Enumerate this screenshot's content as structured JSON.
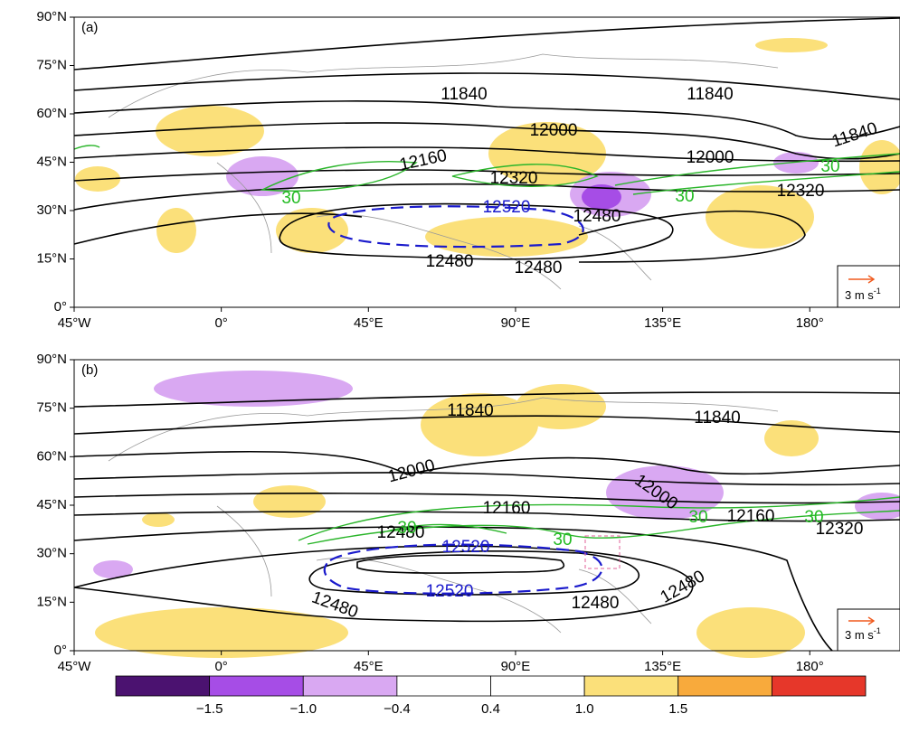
{
  "axes": {
    "lon_lim": [
      -45,
      207.6
    ],
    "lat_lim": [
      0,
      90
    ],
    "lon_ticks": [
      {
        "value": -45,
        "label": "45°W"
      },
      {
        "value": 0,
        "label": "0°"
      },
      {
        "value": 45,
        "label": "45°E"
      },
      {
        "value": 90,
        "label": "90°E"
      },
      {
        "value": 135,
        "label": "135°E"
      },
      {
        "value": 180,
        "label": "180°"
      }
    ],
    "lat_ticks": [
      {
        "value": 0,
        "label": "0°"
      },
      {
        "value": 15,
        "label": "15°N"
      },
      {
        "value": 30,
        "label": "30°N"
      },
      {
        "value": 45,
        "label": "45°N"
      },
      {
        "value": 60,
        "label": "60°N"
      },
      {
        "value": 75,
        "label": "75°N"
      },
      {
        "value": 90,
        "label": "90°N"
      }
    ]
  },
  "panels": [
    {
      "label": "(a)",
      "vector_key": {
        "text": "3 m s",
        "exponent": "-1"
      },
      "contour_labels": [
        "11840",
        "11840",
        "11840",
        "12000",
        "12000",
        "12160",
        "12320",
        "12320",
        "12520",
        "12480",
        "12480",
        "12480",
        "30",
        "30",
        "30"
      ]
    },
    {
      "label": "(b)",
      "vector_key": {
        "text": "3 m s",
        "exponent": "-1"
      },
      "contour_labels": [
        "11840",
        "11840",
        "12000",
        "12000",
        "12160",
        "12160",
        "12320",
        "12480",
        "12520",
        "12520",
        "12480",
        "12480",
        "12480",
        "30",
        "30",
        "30",
        "30"
      ]
    }
  ],
  "colorbar": {
    "colors": [
      "#4b1270",
      "#a64de6",
      "#d9a8f2",
      "#ffffff",
      "#fbe07a",
      "#f8aa3c",
      "#e6372a"
    ],
    "ticks": [
      {
        "value": -1.5,
        "label": "−1.5"
      },
      {
        "value": -1.0,
        "label": "−1.0"
      },
      {
        "value": -0.4,
        "label": "−0.4"
      },
      {
        "value": 0.4,
        "label": "0.4"
      },
      {
        "value": 1.0,
        "label": "1.0"
      },
      {
        "value": 1.5,
        "label": "1.5"
      }
    ]
  }
}
